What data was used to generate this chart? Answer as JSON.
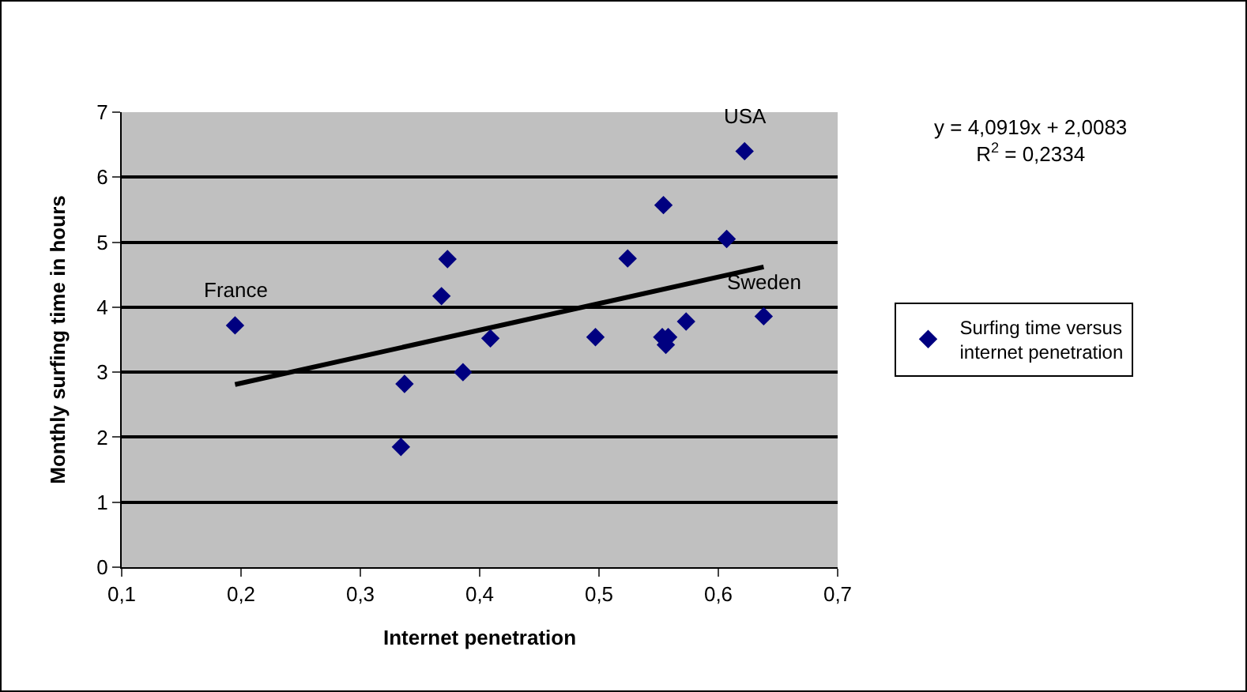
{
  "chart_data": {
    "type": "scatter",
    "xlabel": "Internet penetration",
    "ylabel": "Monthly surfing time in hours",
    "series": [
      {
        "name": "Surfing time versus internet penetration",
        "color": "#000080",
        "marker": "diamond",
        "x": [
          0.195,
          0.337,
          0.334,
          0.368,
          0.373,
          0.386,
          0.409,
          0.497,
          0.524,
          0.554,
          0.553,
          0.558,
          0.556,
          0.573,
          0.607,
          0.622,
          0.638
        ],
        "values": [
          3.72,
          2.82,
          1.85,
          4.17,
          4.74,
          3.0,
          3.52,
          3.54,
          4.75,
          5.57,
          3.54,
          3.54,
          3.42,
          3.78,
          5.05,
          6.4,
          3.86
        ]
      },
      {
        "type": "line",
        "color": "#000000",
        "marker": "none",
        "x": [
          0.195,
          0.638
        ],
        "values": [
          2.81,
          4.62
        ]
      }
    ],
    "xlim": [
      0.1,
      0.7
    ],
    "xticks": [
      {
        "value": 0.1,
        "label": "0,1"
      },
      {
        "value": 0.2,
        "label": "0,2"
      },
      {
        "value": 0.3,
        "label": "0,3"
      },
      {
        "value": 0.4,
        "label": "0,4"
      },
      {
        "value": 0.5,
        "label": "0,5"
      },
      {
        "value": 0.6,
        "label": "0,6"
      },
      {
        "value": 0.7,
        "label": "0,7"
      }
    ],
    "ylim": [
      0,
      7
    ],
    "yticks": [
      0,
      1,
      2,
      3,
      4,
      5,
      6,
      7
    ],
    "grid": "y",
    "legend": "right",
    "annotations": [
      {
        "text": "France",
        "x": 0.195,
        "y": 3.72
      },
      {
        "text": "USA",
        "x": 0.622,
        "y": 6.4
      },
      {
        "text": "Sweden",
        "x": 0.638,
        "y": 3.86
      },
      "y = 4,0919x + 2,0083",
      "R$^{2}$ = 0,2334"
    ]
  }
}
